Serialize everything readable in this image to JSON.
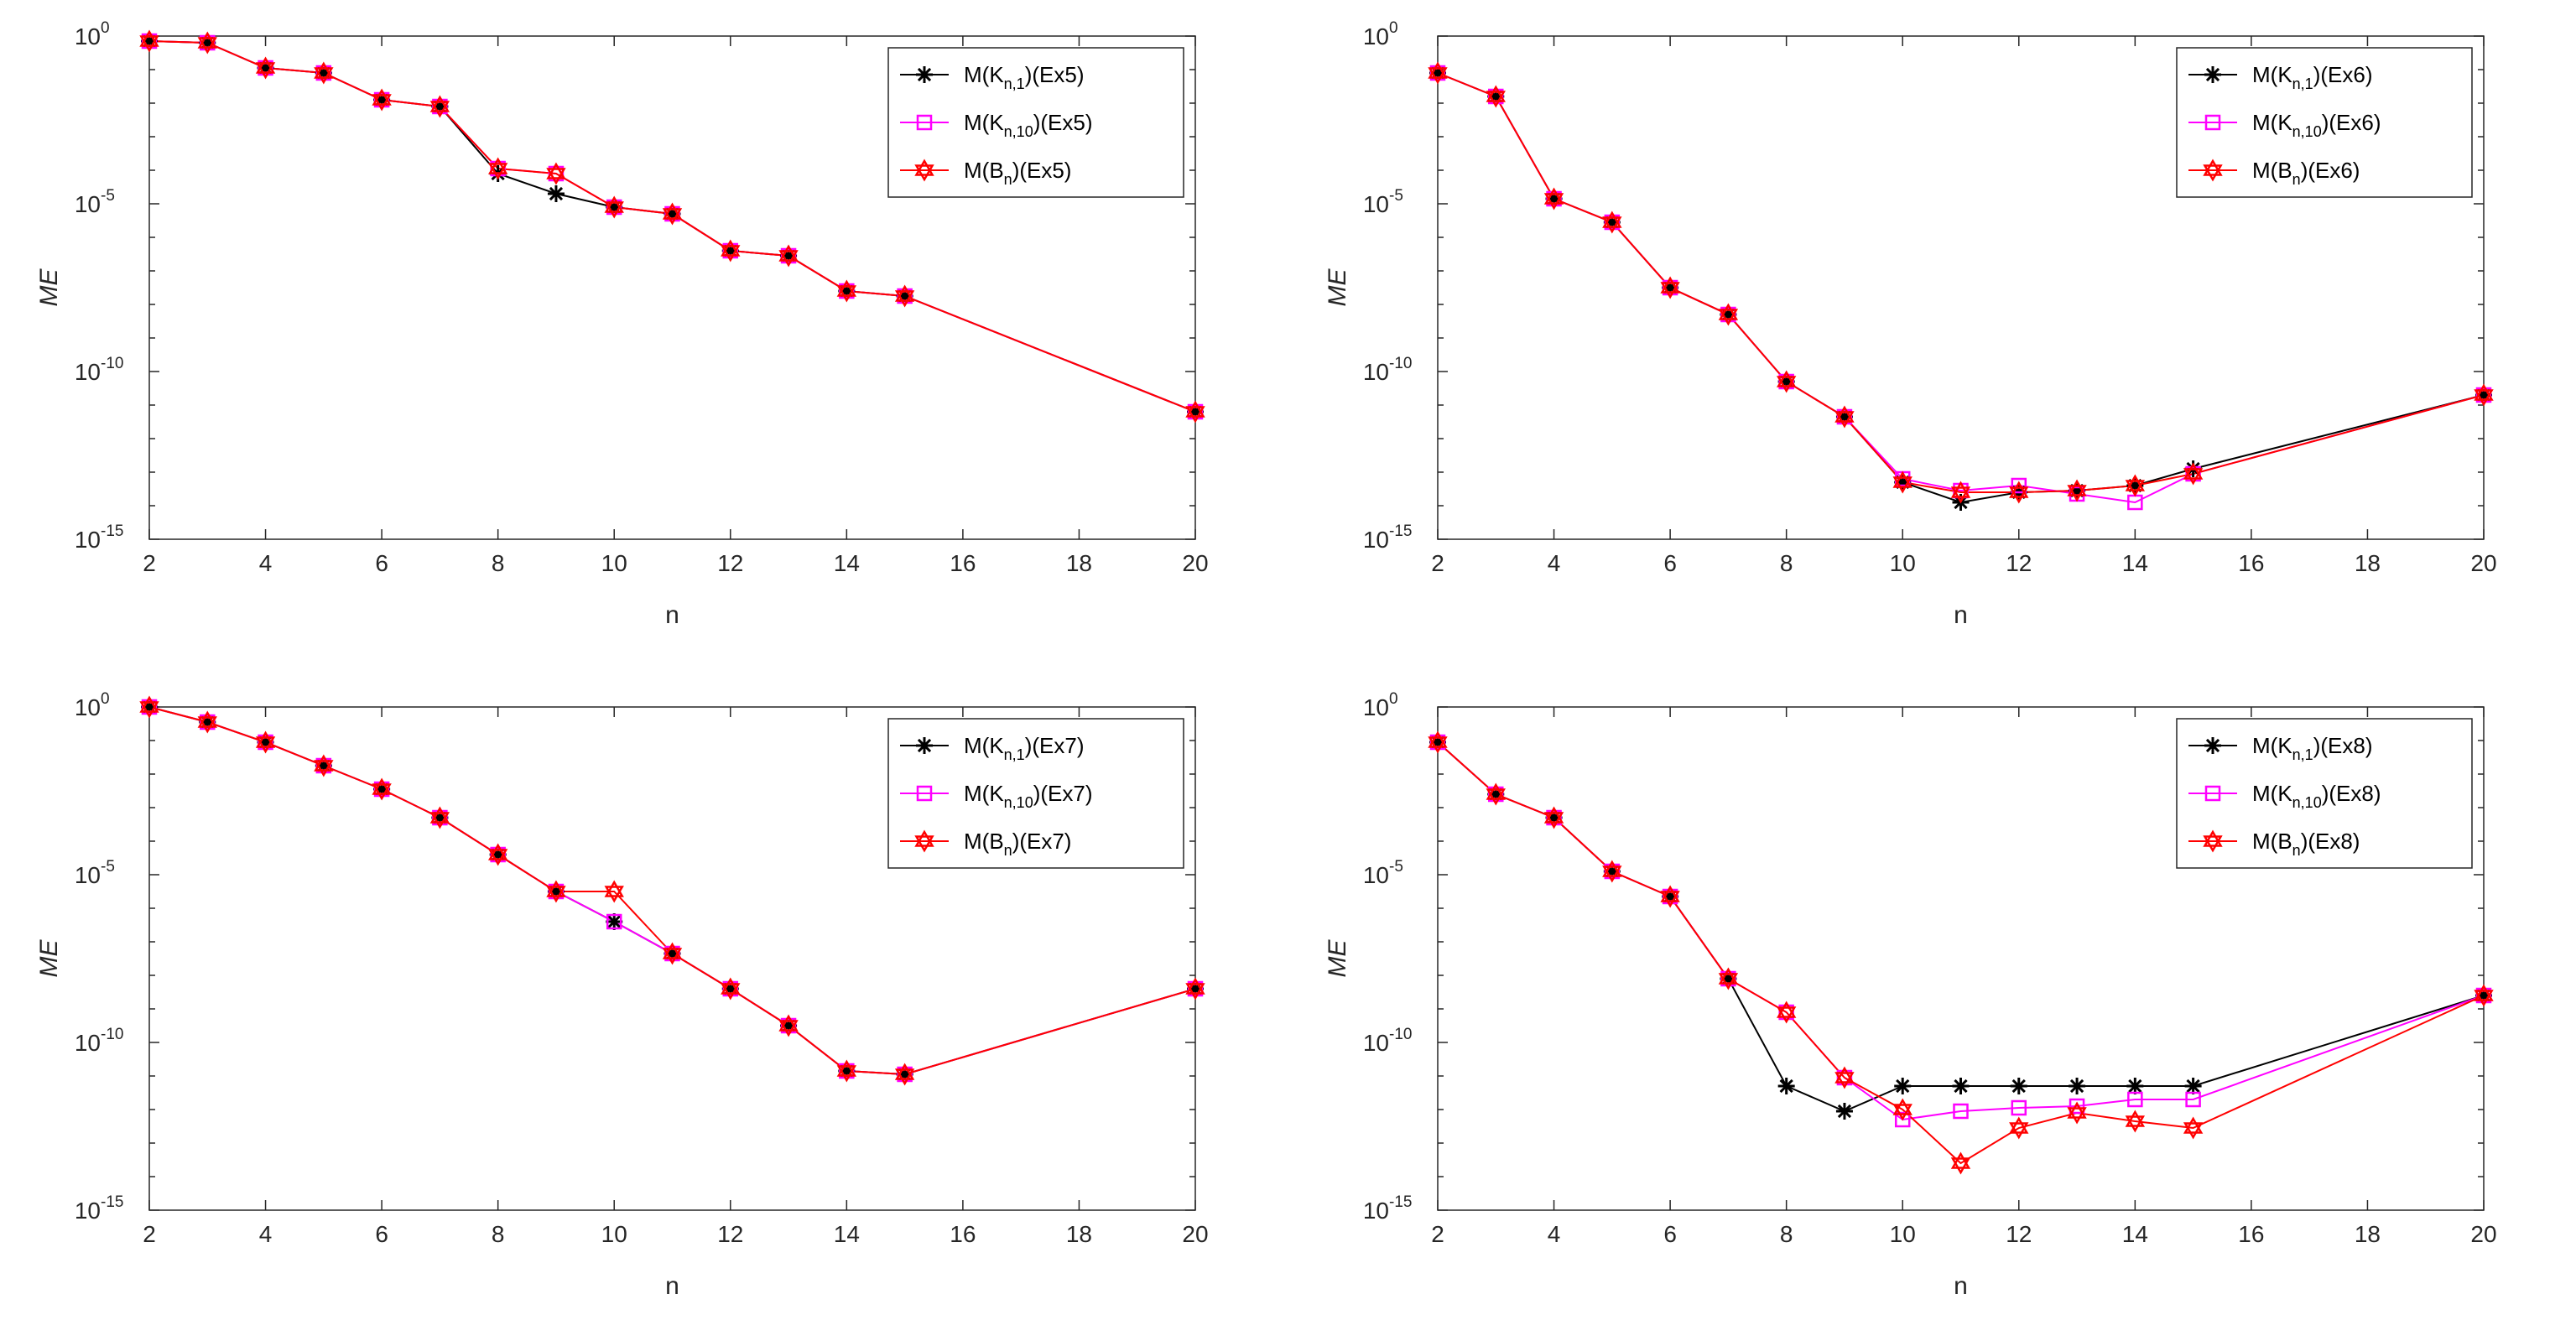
{
  "figure": {
    "colors": {
      "black": "#000000",
      "magenta": "#ff00ff",
      "red": "#ff0000",
      "axis": "#262626"
    },
    "marker_names": [
      "asterisk-marker",
      "square-marker",
      "hexagram-marker"
    ]
  },
  "chart_data": [
    {
      "type": "line",
      "title": "",
      "xlabel": "n",
      "ylabel": "ME",
      "yscale": "log",
      "xlim": [
        2,
        20
      ],
      "ylim_exp": [
        -15,
        0
      ],
      "xticks": [
        "2",
        "4",
        "6",
        "8",
        "10",
        "12",
        "14",
        "16",
        "18",
        "20"
      ],
      "yticks": [
        {
          "base": "10",
          "exp": "0"
        },
        {
          "base": "10",
          "exp": "-5"
        },
        {
          "base": "10",
          "exp": "-10"
        },
        {
          "base": "10",
          "exp": "-15"
        }
      ],
      "legend_position": "top-right",
      "x": [
        2,
        3,
        4,
        5,
        6,
        7,
        8,
        9,
        10,
        11,
        12,
        13,
        14,
        15,
        20
      ],
      "series": [
        {
          "name": "M(K_{n,1})(Ex5)",
          "legend": {
            "pre": "M(K",
            "sub": "n,1",
            "post": ")(Ex5)"
          },
          "color": "#000000",
          "marker": "asterisk",
          "log10": [
            -0.15,
            -0.2,
            -0.95,
            -1.1,
            -1.9,
            -2.1,
            -4.1,
            -4.7,
            -5.1,
            -5.3,
            -6.4,
            -6.55,
            -7.6,
            -7.75,
            -11.2
          ]
        },
        {
          "name": "M(K_{n,10})(Ex5)",
          "legend": {
            "pre": "M(K",
            "sub": "n,10",
            "post": ")(Ex5)"
          },
          "color": "#ff00ff",
          "marker": "square",
          "log10": [
            -0.15,
            -0.2,
            -0.95,
            -1.1,
            -1.9,
            -2.1,
            -3.95,
            -4.1,
            -5.1,
            -5.3,
            -6.4,
            -6.55,
            -7.6,
            -7.75,
            -11.2
          ]
        },
        {
          "name": "M(B_n)(Ex5)",
          "legend": {
            "pre": "M(B",
            "sub": "n",
            "post": ")(Ex5)"
          },
          "color": "#ff0000",
          "marker": "hexagram",
          "log10": [
            -0.15,
            -0.2,
            -0.95,
            -1.1,
            -1.9,
            -2.1,
            -3.95,
            -4.1,
            -5.1,
            -5.3,
            -6.4,
            -6.55,
            -7.6,
            -7.75,
            -11.2
          ]
        }
      ]
    },
    {
      "type": "line",
      "title": "",
      "xlabel": "n",
      "ylabel": "ME",
      "yscale": "log",
      "xlim": [
        2,
        20
      ],
      "ylim_exp": [
        -15,
        0
      ],
      "xticks": [
        "2",
        "4",
        "6",
        "8",
        "10",
        "12",
        "14",
        "16",
        "18",
        "20"
      ],
      "yticks": [
        {
          "base": "10",
          "exp": "0"
        },
        {
          "base": "10",
          "exp": "-5"
        },
        {
          "base": "10",
          "exp": "-10"
        },
        {
          "base": "10",
          "exp": "-15"
        }
      ],
      "legend_position": "top-right",
      "x": [
        2,
        3,
        4,
        5,
        6,
        7,
        8,
        9,
        10,
        11,
        12,
        13,
        14,
        15,
        20
      ],
      "series": [
        {
          "name": "M(K_{n,1})(Ex6)",
          "legend": {
            "pre": "M(K",
            "sub": "n,1",
            "post": ")(Ex6)"
          },
          "color": "#000000",
          "marker": "asterisk",
          "log10": [
            -1.1,
            -1.8,
            -4.85,
            -5.55,
            -7.5,
            -8.3,
            -10.3,
            -11.35,
            -13.3,
            -13.9,
            -13.6,
            -13.55,
            -13.4,
            -12.9,
            -10.7
          ]
        },
        {
          "name": "M(K_{n,10})(Ex6)",
          "legend": {
            "pre": "M(K",
            "sub": "n,10",
            "post": ")(Ex6)"
          },
          "color": "#ff00ff",
          "marker": "square",
          "log10": [
            -1.1,
            -1.8,
            -4.85,
            -5.55,
            -7.5,
            -8.3,
            -10.3,
            -11.35,
            -13.2,
            -13.55,
            -13.4,
            -13.65,
            -13.9,
            -13.05,
            -10.7
          ]
        },
        {
          "name": "M(B_n)(Ex6)",
          "legend": {
            "pre": "M(B",
            "sub": "n",
            "post": ")(Ex6)"
          },
          "color": "#ff0000",
          "marker": "hexagram",
          "log10": [
            -1.1,
            -1.8,
            -4.85,
            -5.55,
            -7.5,
            -8.3,
            -10.3,
            -11.35,
            -13.3,
            -13.6,
            -13.6,
            -13.55,
            -13.4,
            -13.05,
            -10.7
          ]
        }
      ]
    },
    {
      "type": "line",
      "title": "",
      "xlabel": "n",
      "ylabel": "ME",
      "yscale": "log",
      "xlim": [
        2,
        20
      ],
      "ylim_exp": [
        -15,
        0
      ],
      "xticks": [
        "2",
        "4",
        "6",
        "8",
        "10",
        "12",
        "14",
        "16",
        "18",
        "20"
      ],
      "yticks": [
        {
          "base": "10",
          "exp": "0"
        },
        {
          "base": "10",
          "exp": "-5"
        },
        {
          "base": "10",
          "exp": "-10"
        },
        {
          "base": "10",
          "exp": "-15"
        }
      ],
      "legend_position": "top-right",
      "x": [
        2,
        3,
        4,
        5,
        6,
        7,
        8,
        9,
        10,
        11,
        12,
        13,
        14,
        15,
        20
      ],
      "series": [
        {
          "name": "M(K_{n,1})(Ex7)",
          "legend": {
            "pre": "M(K",
            "sub": "n,1",
            "post": ")(Ex7)"
          },
          "color": "#000000",
          "marker": "asterisk",
          "log10": [
            0,
            -0.45,
            -1.05,
            -1.75,
            -2.45,
            -3.3,
            -4.4,
            -5.5,
            -6.4,
            -7.35,
            -8.4,
            -9.5,
            -10.85,
            -10.95,
            -8.4
          ]
        },
        {
          "name": "M(K_{n,10})(Ex7)",
          "legend": {
            "pre": "M(K",
            "sub": "n,10",
            "post": ")(Ex7)"
          },
          "color": "#ff00ff",
          "marker": "square",
          "log10": [
            0,
            -0.45,
            -1.05,
            -1.75,
            -2.45,
            -3.3,
            -4.4,
            -5.5,
            -6.4,
            -7.35,
            -8.4,
            -9.5,
            -10.85,
            -10.95,
            -8.4
          ]
        },
        {
          "name": "M(B_n)(Ex7)",
          "legend": {
            "pre": "M(B",
            "sub": "n",
            "post": ")(Ex7)"
          },
          "color": "#ff0000",
          "marker": "hexagram",
          "log10": [
            0,
            -0.45,
            -1.05,
            -1.75,
            -2.45,
            -3.3,
            -4.4,
            -5.5,
            -5.5,
            -7.35,
            -8.4,
            -9.5,
            -10.85,
            -10.95,
            -8.4
          ]
        }
      ]
    },
    {
      "type": "line",
      "title": "",
      "xlabel": "n",
      "ylabel": "ME",
      "yscale": "log",
      "xlim": [
        2,
        20
      ],
      "ylim_exp": [
        -15,
        0
      ],
      "xticks": [
        "2",
        "4",
        "6",
        "8",
        "10",
        "12",
        "14",
        "16",
        "18",
        "20"
      ],
      "yticks": [
        {
          "base": "10",
          "exp": "0"
        },
        {
          "base": "10",
          "exp": "-5"
        },
        {
          "base": "10",
          "exp": "-10"
        },
        {
          "base": "10",
          "exp": "-15"
        }
      ],
      "legend_position": "top-right",
      "x": [
        2,
        3,
        4,
        5,
        6,
        7,
        8,
        9,
        10,
        11,
        12,
        13,
        14,
        15,
        20
      ],
      "series": [
        {
          "name": "M(K_{n,1})(Ex8)",
          "legend": {
            "pre": "M(K",
            "sub": "n,1",
            "post": ")(Ex8)"
          },
          "color": "#000000",
          "marker": "asterisk",
          "log10": [
            -1.05,
            -2.6,
            -3.3,
            -4.9,
            -5.65,
            -8.1,
            -11.3,
            -12.05,
            -11.3,
            -11.3,
            -11.3,
            -11.3,
            -11.3,
            -11.3,
            -8.6
          ]
        },
        {
          "name": "M(K_{n,10})(Ex8)",
          "legend": {
            "pre": "M(K",
            "sub": "n,10",
            "post": ")(Ex8)"
          },
          "color": "#ff00ff",
          "marker": "square",
          "log10": [
            -1.05,
            -2.6,
            -3.3,
            -4.9,
            -5.65,
            -8.1,
            -9.1,
            -11.05,
            -12.3,
            -12.05,
            -11.95,
            -11.9,
            -11.7,
            -11.7,
            -8.6
          ]
        },
        {
          "name": "M(B_n)(Ex8)",
          "legend": {
            "pre": "M(B",
            "sub": "n",
            "post": ")(Ex8)"
          },
          "color": "#ff0000",
          "marker": "hexagram",
          "log10": [
            -1.05,
            -2.6,
            -3.3,
            -4.9,
            -5.65,
            -8.1,
            -9.1,
            -11.05,
            -12.0,
            -13.6,
            -12.55,
            -12.1,
            -12.35,
            -12.55,
            -8.6
          ]
        }
      ]
    }
  ]
}
